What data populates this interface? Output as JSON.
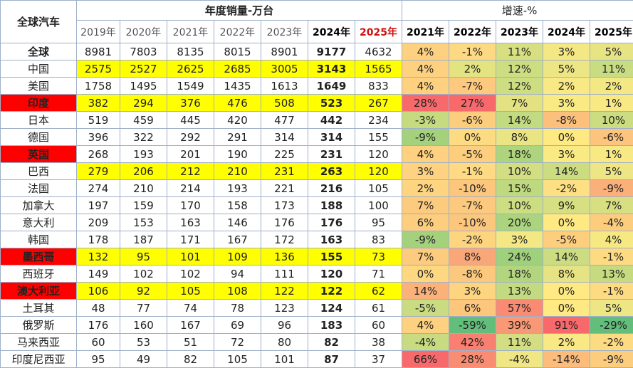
{
  "header": {
    "corner": "全球汽车",
    "sales_title": "年度销量-万台",
    "growth_title": "增速-%",
    "sales_years": [
      "2019年",
      "2020年",
      "2021年",
      "2022年",
      "2023年",
      "2024年",
      "2025年"
    ],
    "growth_years": [
      "2021年",
      "2022年",
      "2023年",
      "2024年",
      "2025年"
    ]
  },
  "rows": [
    {
      "name": "全球",
      "style": "bold",
      "hl": false,
      "sales": [
        "8981",
        "7803",
        "8135",
        "8015",
        "8901",
        "9177",
        "4632"
      ],
      "growth": [
        "4%",
        "-1%",
        "11%",
        "3%",
        "5%"
      ]
    },
    {
      "name": "中国",
      "style": "normal",
      "hl": true,
      "sales": [
        "2575",
        "2527",
        "2625",
        "2685",
        "3005",
        "3143",
        "1565"
      ],
      "growth": [
        "4%",
        "2%",
        "12%",
        "5%",
        "11%"
      ]
    },
    {
      "name": "美国",
      "style": "normal",
      "hl": false,
      "sales": [
        "1758",
        "1495",
        "1549",
        "1435",
        "1613",
        "1649",
        "833"
      ],
      "growth": [
        "4%",
        "-7%",
        "12%",
        "2%",
        "2%"
      ]
    },
    {
      "name": "印度",
      "style": "red",
      "hl": true,
      "sales": [
        "382",
        "294",
        "376",
        "476",
        "508",
        "523",
        "267"
      ],
      "growth": [
        "28%",
        "27%",
        "7%",
        "3%",
        "1%"
      ]
    },
    {
      "name": "日本",
      "style": "normal",
      "hl": false,
      "sales": [
        "519",
        "459",
        "445",
        "420",
        "477",
        "442",
        "234"
      ],
      "growth": [
        "-3%",
        "-6%",
        "14%",
        "-8%",
        "10%"
      ]
    },
    {
      "name": "德国",
      "style": "normal",
      "hl": false,
      "sales": [
        "396",
        "322",
        "292",
        "291",
        "314",
        "314",
        "155"
      ],
      "growth": [
        "-9%",
        "0%",
        "8%",
        "0%",
        "-6%"
      ]
    },
    {
      "name": "英国",
      "style": "red",
      "hl": false,
      "sales": [
        "268",
        "193",
        "201",
        "190",
        "225",
        "231",
        "120"
      ],
      "growth": [
        "4%",
        "-5%",
        "18%",
        "3%",
        "1%"
      ]
    },
    {
      "name": "巴西",
      "style": "normal",
      "hl": true,
      "sales": [
        "279",
        "206",
        "212",
        "210",
        "231",
        "263",
        "120"
      ],
      "growth": [
        "3%",
        "-1%",
        "10%",
        "14%",
        "5%"
      ]
    },
    {
      "name": "法国",
      "style": "normal",
      "hl": false,
      "sales": [
        "274",
        "210",
        "214",
        "193",
        "221",
        "216",
        "105"
      ],
      "growth": [
        "2%",
        "-10%",
        "15%",
        "-2%",
        "-9%"
      ]
    },
    {
      "name": "加拿大",
      "style": "normal",
      "hl": false,
      "sales": [
        "197",
        "159",
        "170",
        "158",
        "173",
        "188",
        "100"
      ],
      "growth": [
        "7%",
        "-7%",
        "10%",
        "9%",
        "7%"
      ]
    },
    {
      "name": "意大利",
      "style": "normal",
      "hl": false,
      "sales": [
        "209",
        "153",
        "163",
        "146",
        "176",
        "176",
        "95"
      ],
      "growth": [
        "6%",
        "-10%",
        "20%",
        "0%",
        "-4%"
      ]
    },
    {
      "name": "韩国",
      "style": "normal",
      "hl": false,
      "sales": [
        "178",
        "187",
        "171",
        "167",
        "172",
        "163",
        "83"
      ],
      "growth": [
        "-9%",
        "-2%",
        "3%",
        "-5%",
        "4%"
      ]
    },
    {
      "name": "墨西哥",
      "style": "red",
      "hl": true,
      "sales": [
        "132",
        "95",
        "101",
        "109",
        "136",
        "155",
        "73"
      ],
      "growth": [
        "7%",
        "8%",
        "24%",
        "14%",
        "-1%"
      ]
    },
    {
      "name": "西班牙",
      "style": "normal",
      "hl": false,
      "sales": [
        "149",
        "102",
        "102",
        "94",
        "111",
        "120",
        "71"
      ],
      "growth": [
        "0%",
        "-8%",
        "18%",
        "8%",
        "13%"
      ]
    },
    {
      "name": "澳大利亚",
      "style": "red",
      "hl": true,
      "sales": [
        "106",
        "92",
        "105",
        "108",
        "122",
        "122",
        "62"
      ],
      "growth": [
        "14%",
        "3%",
        "13%",
        "0%",
        "-1%"
      ]
    },
    {
      "name": "土耳其",
      "style": "normal",
      "hl": false,
      "sales": [
        "48",
        "77",
        "74",
        "78",
        "123",
        "124",
        "61"
      ],
      "growth": [
        "-5%",
        "6%",
        "57%",
        "0%",
        "5%"
      ]
    },
    {
      "name": "俄罗斯",
      "style": "normal",
      "hl": false,
      "sales": [
        "176",
        "160",
        "167",
        "69",
        "96",
        "183",
        "60"
      ],
      "growth": [
        "4%",
        "-59%",
        "39%",
        "91%",
        "-29%"
      ]
    },
    {
      "name": "马来西亚",
      "style": "normal",
      "hl": false,
      "sales": [
        "60",
        "53",
        "51",
        "72",
        "80",
        "82",
        "38"
      ],
      "growth": [
        "-4%",
        "42%",
        "11%",
        "2%",
        "-2%"
      ]
    },
    {
      "name": "印度尼西亚",
      "style": "normal",
      "hl": false,
      "sales": [
        "95",
        "49",
        "82",
        "105",
        "101",
        "87",
        "37"
      ],
      "growth": [
        "66%",
        "28%",
        "-4%",
        "-14%",
        "-9%"
      ]
    }
  ],
  "growth_colors": [
    [
      "#fdd17f",
      "#fdd983",
      "#d7df81",
      "#f4e884",
      "#e7e483"
    ],
    [
      "#fdd17f",
      "#e4e382",
      "#cddd81",
      "#ede684",
      "#c8dc81"
    ],
    [
      "#fdd17f",
      "#fdc97e",
      "#cddd81",
      "#f8e984",
      "#f4e884"
    ],
    [
      "#f8696b",
      "#f8696b",
      "#e3e282",
      "#f9ea84",
      "#f8e984"
    ],
    [
      "#c6db80",
      "#fdcd7e",
      "#c2da80",
      "#fcc07c",
      "#cbdc81"
    ],
    [
      "#a4d17c",
      "#fddb83",
      "#eae583",
      "#fee983",
      "#fdc47d"
    ],
    [
      "#fdd17f",
      "#fdce7e",
      "#aed47d",
      "#f9ea84",
      "#f8e984"
    ],
    [
      "#fdd280",
      "#fdda83",
      "#d2de81",
      "#cbdc81",
      "#eee684"
    ],
    [
      "#fdd480",
      "#fcc67d",
      "#bfd97f",
      "#fde083",
      "#fbb07a"
    ],
    [
      "#fccb7e",
      "#fdc97e",
      "#cddd81",
      "#d6df82",
      "#d8df81"
    ],
    [
      "#fdce7e",
      "#fcc67d",
      "#acd37d",
      "#fee983",
      "#fdcd7e"
    ],
    [
      "#a4d17c",
      "#fdd480",
      "#f3e884",
      "#fdce7e",
      "#f6e984"
    ],
    [
      "#fccb7e",
      "#f9a779",
      "#9fd07b",
      "#cbdc81",
      "#fddb83"
    ],
    [
      "#fdd881",
      "#fcc87d",
      "#b2d57d",
      "#e5e383",
      "#c6db80"
    ],
    [
      "#fbb27a",
      "#fdd580",
      "#c4da80",
      "#fee983",
      "#fddb83"
    ],
    [
      "#cadc81",
      "#fcc67d",
      "#fb8a72",
      "#fee983",
      "#eee684"
    ],
    [
      "#fdd17f",
      "#63be7b",
      "#f99874",
      "#f8696b",
      "#63be7b"
    ],
    [
      "#c8db81",
      "#f97f70",
      "#d2de81",
      "#f8e984",
      "#fddb83"
    ],
    [
      "#f8696b",
      "#f98d73",
      "#f0e784",
      "#fcbc7c",
      "#fdcd7e"
    ]
  ]
}
